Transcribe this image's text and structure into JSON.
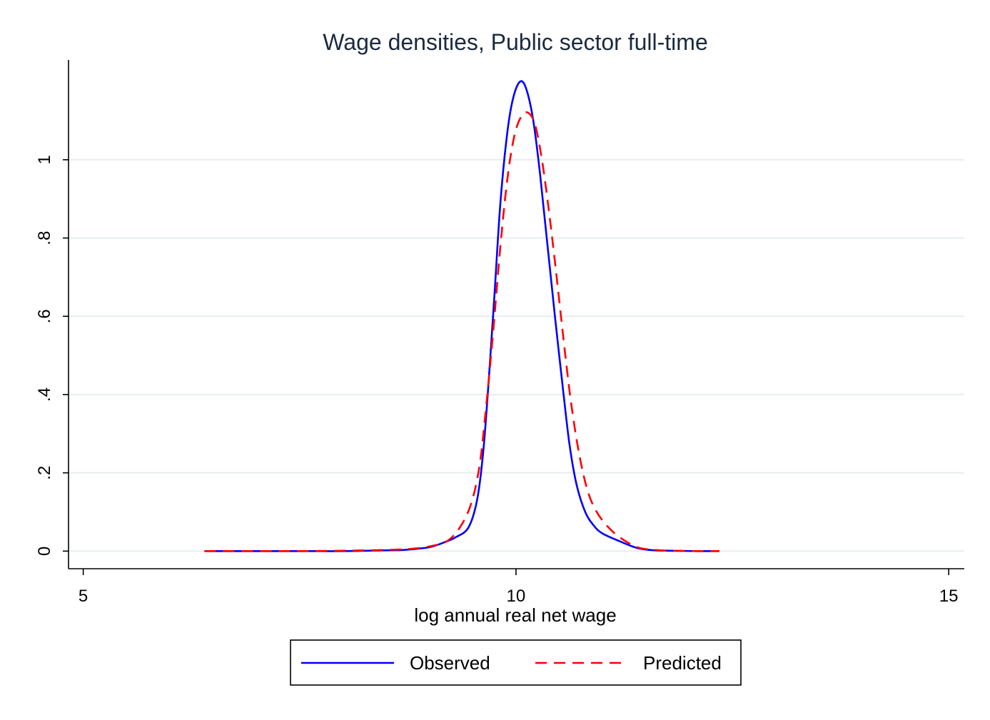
{
  "chart_data": {
    "type": "line",
    "title": "Wage densities, Public sector full-time",
    "xlabel": "log annual real net wage",
    "ylabel": "",
    "xlim": [
      4.83,
      15.18
    ],
    "ylim": [
      -0.045,
      1.255
    ],
    "xticks": [
      5,
      10,
      15
    ],
    "xtick_labels": [
      "5",
      "10",
      "15"
    ],
    "yticks": [
      0,
      0.2,
      0.4,
      0.6,
      0.8,
      1
    ],
    "ytick_labels": [
      "0",
      ".2",
      ".4",
      ".6",
      ".8",
      "1"
    ],
    "grid": true,
    "legend_position": "bottom",
    "series": [
      {
        "name": "Observed",
        "color": "#0000ff",
        "style": "solid",
        "x": [
          6.4,
          7.0,
          7.5,
          8.0,
          8.5,
          8.7,
          9.0,
          9.2,
          9.3,
          9.45,
          9.55,
          9.62,
          9.68,
          9.75,
          9.82,
          9.9,
          9.97,
          10.05,
          10.12,
          10.2,
          10.28,
          10.36,
          10.45,
          10.55,
          10.62,
          10.7,
          10.8,
          10.9,
          11.0,
          11.2,
          11.4,
          11.6,
          11.8,
          12.1,
          12.35
        ],
        "values": [
          0.0,
          0.0,
          0.0,
          0.0,
          0.002,
          0.003,
          0.01,
          0.025,
          0.035,
          0.06,
          0.13,
          0.25,
          0.42,
          0.65,
          0.89,
          1.07,
          1.16,
          1.2,
          1.18,
          1.1,
          0.96,
          0.79,
          0.6,
          0.4,
          0.27,
          0.17,
          0.1,
          0.065,
          0.045,
          0.025,
          0.008,
          0.002,
          0.001,
          0.0,
          0.0
        ]
      },
      {
        "name": "Predicted",
        "color": "#ff0000",
        "style": "dashed",
        "x": [
          6.4,
          7.0,
          7.5,
          8.0,
          8.5,
          8.8,
          9.0,
          9.2,
          9.35,
          9.48,
          9.58,
          9.66,
          9.74,
          9.82,
          9.9,
          9.98,
          10.06,
          10.14,
          10.22,
          10.3,
          10.38,
          10.46,
          10.55,
          10.63,
          10.72,
          10.82,
          10.92,
          11.05,
          11.2,
          11.4,
          11.6,
          11.8,
          12.1,
          12.35
        ],
        "values": [
          0.0,
          0.0,
          0.0,
          0.001,
          0.003,
          0.006,
          0.012,
          0.025,
          0.06,
          0.12,
          0.22,
          0.38,
          0.57,
          0.78,
          0.95,
          1.06,
          1.11,
          1.12,
          1.09,
          1.0,
          0.87,
          0.72,
          0.54,
          0.39,
          0.26,
          0.16,
          0.105,
          0.065,
          0.035,
          0.01,
          0.003,
          0.001,
          0.0,
          0.0
        ]
      }
    ]
  }
}
